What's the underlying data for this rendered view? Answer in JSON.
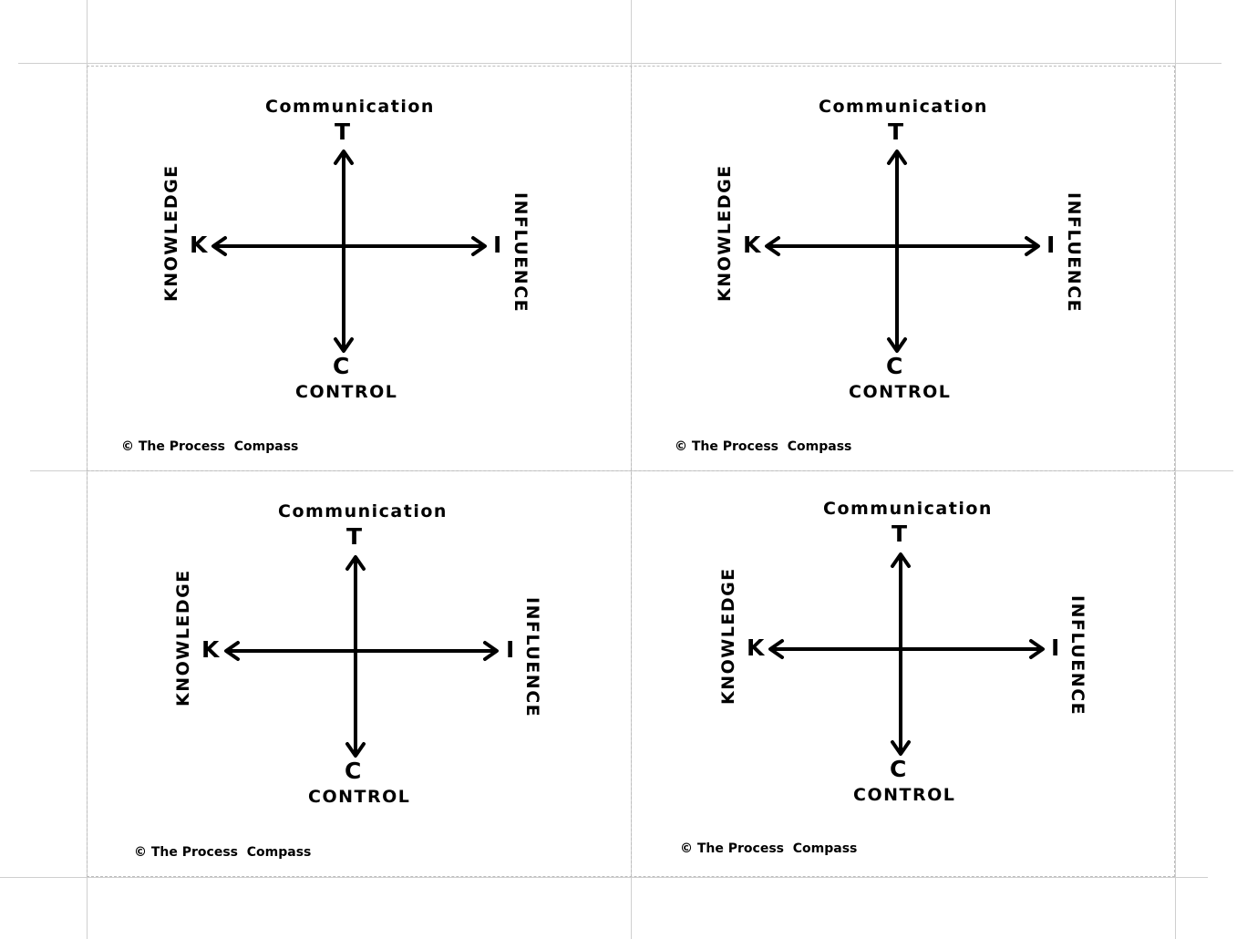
{
  "cards": [
    {
      "top_word": "Communication",
      "top_letter": "T",
      "bottom_letter": "C",
      "bottom_word": "CONTROL",
      "left_letter": "K",
      "left_word": "KNOWLEDGE",
      "right_letter": "I",
      "right_word": "INFLUENCE",
      "copyright": "© The Process  Compass"
    },
    {
      "top_word": "Communication",
      "top_letter": "T",
      "bottom_letter": "C",
      "bottom_word": "CONTROL",
      "left_letter": "K",
      "left_word": "KNOWLEDGE",
      "right_letter": "I",
      "right_word": "INFLUENCE",
      "copyright": "© The Process  Compass"
    },
    {
      "top_word": "Communication",
      "top_letter": "T",
      "bottom_letter": "C",
      "bottom_word": "CONTROL",
      "left_letter": "K",
      "left_word": "KNOWLEDGE",
      "right_letter": "I",
      "right_word": "INFLUENCE",
      "copyright": "© The Process  Compass"
    },
    {
      "top_word": "Communication",
      "top_letter": "T",
      "bottom_letter": "C",
      "bottom_word": "CONTROL",
      "left_letter": "K",
      "left_word": "KNOWLEDGE",
      "right_letter": "I",
      "right_word": "INFLUENCE",
      "copyright": "© The Process  Compass"
    }
  ]
}
